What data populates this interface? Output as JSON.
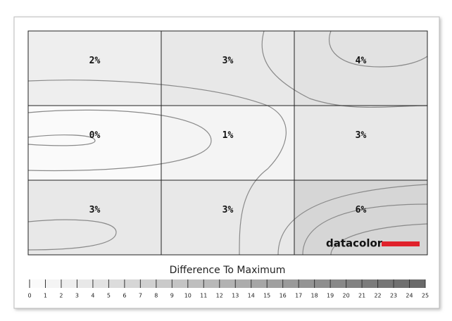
{
  "chart_data": {
    "type": "heatmap",
    "title": "Difference To Maximum",
    "brand": "datacolor",
    "values": [
      [
        2,
        3,
        4
      ],
      [
        0,
        1,
        3
      ],
      [
        3,
        3,
        6
      ]
    ],
    "value_labels": [
      [
        "2%",
        "3%",
        "4%"
      ],
      [
        "0%",
        "1%",
        "3%"
      ],
      [
        "3%",
        "3%",
        "6%"
      ]
    ],
    "zlim": [
      0,
      25
    ],
    "zticks": [
      0,
      1,
      2,
      3,
      4,
      5,
      6,
      7,
      8,
      9,
      10,
      11,
      12,
      13,
      14,
      15,
      16,
      17,
      18,
      19,
      20,
      21,
      22,
      23,
      24,
      25
    ],
    "brand_color": "#e0212b"
  }
}
